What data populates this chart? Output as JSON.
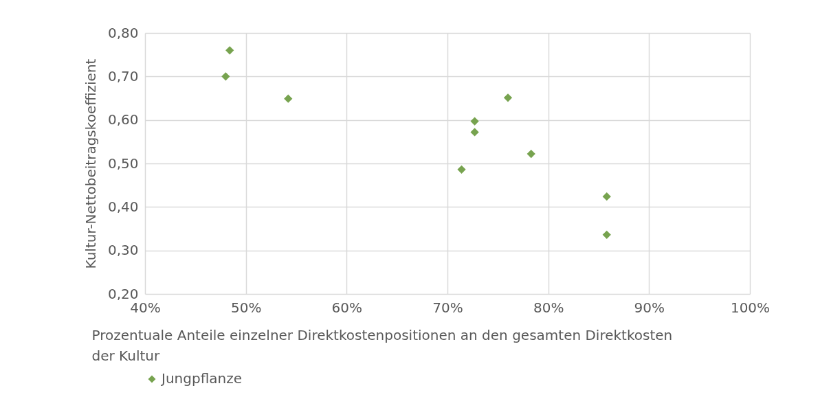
{
  "chart_data": {
    "type": "scatter",
    "xlabel": "Prozentuale Anteile einzelner Direktkostenpositionen an den gesamten Direktkosten der Kultur",
    "ylabel": "Kultur-Nettobeitragskoeffizient",
    "x": [
      48.4,
      48.0,
      54.2,
      76.0,
      72.7,
      72.7,
      71.4,
      78.3,
      85.8,
      85.8
    ],
    "series": [
      {
        "name": "Jungpflanze",
        "color": "#77a34f",
        "values": [
          0.76,
          0.7,
          0.649,
          0.651,
          0.597,
          0.572,
          0.486,
          0.522,
          0.424,
          0.336
        ]
      }
    ],
    "xlim": [
      40,
      100
    ],
    "xticks": [
      {
        "value": 40,
        "label": "40%"
      },
      {
        "value": 50,
        "label": "50%"
      },
      {
        "value": 60,
        "label": "60%"
      },
      {
        "value": 70,
        "label": "70%"
      },
      {
        "value": 80,
        "label": "80%"
      },
      {
        "value": 90,
        "label": "90%"
      },
      {
        "value": 100,
        "label": "100%"
      }
    ],
    "ylim": [
      0.2,
      0.8
    ],
    "yticks": [
      {
        "value": 0.2,
        "label": "0,20"
      },
      {
        "value": 0.3,
        "label": "0,30"
      },
      {
        "value": 0.4,
        "label": "0,40"
      },
      {
        "value": 0.5,
        "label": "0,50"
      },
      {
        "value": 0.6,
        "label": "0,60"
      },
      {
        "value": 0.7,
        "label": "0,70"
      },
      {
        "value": 0.8,
        "label": "0,80"
      }
    ],
    "grid": true,
    "legend": "bottom",
    "marker": "diamond"
  }
}
